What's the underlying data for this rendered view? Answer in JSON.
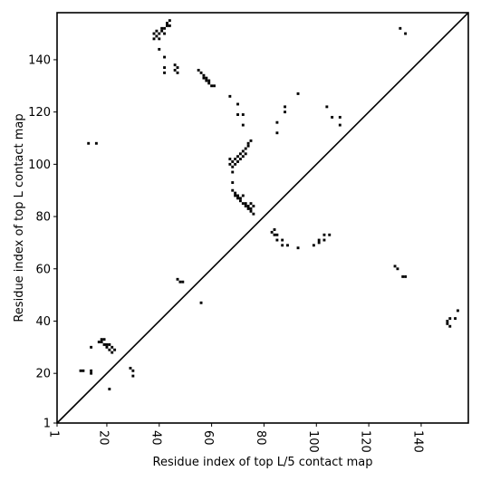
{
  "chart_data": {
    "type": "scatter",
    "title": "",
    "xlabel": "Residue index of top L/5 contact map",
    "ylabel": "Residue index of top L contact map",
    "xlim": [
      1,
      158
    ],
    "ylim": [
      1,
      158
    ],
    "x_ticks": [
      1,
      20,
      40,
      60,
      80,
      100,
      120,
      140
    ],
    "y_ticks": [
      1,
      20,
      40,
      60,
      80,
      100,
      120,
      140
    ],
    "x_tick_labels": [
      "1",
      "20",
      "40",
      "60",
      "80",
      "100",
      "120",
      "140"
    ],
    "y_tick_labels": [
      "1",
      "20",
      "40",
      "60",
      "80",
      "100",
      "120",
      "140"
    ],
    "x_tick_rotation": -90,
    "marker": "filled square",
    "marker_color": "#000000",
    "reference_line": "diagonal y = x",
    "grid": false,
    "legend": "none",
    "points": [
      [
        38,
        148
      ],
      [
        38,
        150
      ],
      [
        39,
        149
      ],
      [
        39,
        151
      ],
      [
        40,
        150
      ],
      [
        40,
        148
      ],
      [
        41,
        151
      ],
      [
        41,
        152
      ],
      [
        42,
        150
      ],
      [
        42,
        152
      ],
      [
        43,
        153
      ],
      [
        43,
        154
      ],
      [
        44,
        155
      ],
      [
        44,
        153
      ],
      [
        40,
        144
      ],
      [
        42,
        141
      ],
      [
        42,
        137
      ],
      [
        42,
        135
      ],
      [
        46,
        138
      ],
      [
        46,
        136
      ],
      [
        47,
        137
      ],
      [
        47,
        135
      ],
      [
        55,
        136
      ],
      [
        56,
        135
      ],
      [
        57,
        134
      ],
      [
        57,
        133
      ],
      [
        58,
        133
      ],
      [
        58,
        132
      ],
      [
        59,
        131
      ],
      [
        59,
        132
      ],
      [
        60,
        130
      ],
      [
        61,
        130
      ],
      [
        67,
        126
      ],
      [
        70,
        123
      ],
      [
        70,
        119
      ],
      [
        72,
        119
      ],
      [
        72,
        115
      ],
      [
        85,
        116
      ],
      [
        85,
        112
      ],
      [
        88,
        122
      ],
      [
        88,
        120
      ],
      [
        93,
        127
      ],
      [
        104,
        122
      ],
      [
        106,
        118
      ],
      [
        109,
        118
      ],
      [
        109,
        115
      ],
      [
        67,
        102
      ],
      [
        67,
        100
      ],
      [
        68,
        101
      ],
      [
        68,
        99
      ],
      [
        68,
        97
      ],
      [
        69,
        100
      ],
      [
        69,
        102
      ],
      [
        70,
        103
      ],
      [
        70,
        101
      ],
      [
        71,
        104
      ],
      [
        71,
        102
      ],
      [
        72,
        105
      ],
      [
        72,
        103
      ],
      [
        73,
        106
      ],
      [
        73,
        104
      ],
      [
        74,
        107
      ],
      [
        74,
        108
      ],
      [
        75,
        109
      ],
      [
        68,
        93
      ],
      [
        68,
        90
      ],
      [
        69,
        89
      ],
      [
        69,
        88
      ],
      [
        70,
        87
      ],
      [
        70,
        88
      ],
      [
        71,
        86
      ],
      [
        71,
        87
      ],
      [
        72,
        85
      ],
      [
        72,
        88
      ],
      [
        73,
        84
      ],
      [
        73,
        85
      ],
      [
        74,
        83
      ],
      [
        74,
        84
      ],
      [
        75,
        83
      ],
      [
        75,
        85
      ],
      [
        75,
        82
      ],
      [
        76,
        84
      ],
      [
        76,
        81
      ],
      [
        83,
        74
      ],
      [
        84,
        75
      ],
      [
        84,
        73
      ],
      [
        85,
        71
      ],
      [
        85,
        73
      ],
      [
        87,
        71
      ],
      [
        87,
        69
      ],
      [
        89,
        69
      ],
      [
        93,
        68
      ],
      [
        99,
        69
      ],
      [
        101,
        70
      ],
      [
        101,
        71
      ],
      [
        103,
        71
      ],
      [
        103,
        73
      ],
      [
        105,
        73
      ],
      [
        47,
        56
      ],
      [
        48,
        55
      ],
      [
        49,
        55
      ],
      [
        56,
        47
      ],
      [
        130,
        61
      ],
      [
        131,
        60
      ],
      [
        133,
        57
      ],
      [
        134,
        57
      ],
      [
        150,
        40
      ],
      [
        150,
        39
      ],
      [
        151,
        41
      ],
      [
        151,
        38
      ],
      [
        153,
        41
      ],
      [
        154,
        44
      ],
      [
        13,
        108
      ],
      [
        16,
        108
      ],
      [
        18,
        33
      ],
      [
        18,
        32
      ],
      [
        19,
        31
      ],
      [
        19,
        33
      ],
      [
        20,
        30
      ],
      [
        20,
        31
      ],
      [
        21,
        31
      ],
      [
        21,
        29
      ],
      [
        22,
        28
      ],
      [
        22,
        30
      ],
      [
        23,
        29
      ],
      [
        17,
        32
      ],
      [
        10,
        21
      ],
      [
        11,
        21
      ],
      [
        14,
        20
      ],
      [
        14,
        21
      ],
      [
        14,
        30
      ],
      [
        21,
        14
      ],
      [
        29,
        22
      ],
      [
        30,
        21
      ],
      [
        30,
        19
      ],
      [
        132,
        152
      ],
      [
        134,
        150
      ]
    ]
  }
}
